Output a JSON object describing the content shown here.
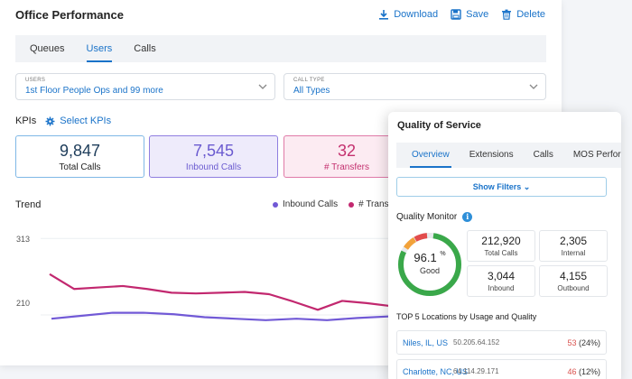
{
  "header": {
    "title": "Office Performance",
    "download_label": "Download",
    "save_label": "Save",
    "delete_label": "Delete"
  },
  "tabs": [
    {
      "label": "Queues",
      "active": false
    },
    {
      "label": "Users",
      "active": true
    },
    {
      "label": "Calls",
      "active": false
    }
  ],
  "filters": {
    "users": {
      "label": "USERS",
      "value": "1st Floor People Ops and 99 more"
    },
    "call_type": {
      "label": "CALL TYPE",
      "value": "All Types"
    }
  },
  "kpis": {
    "label": "KPIs",
    "select_label": "Select KPIs",
    "cards": [
      {
        "value": "9,847",
        "label": "Total Calls"
      },
      {
        "value": "7,545",
        "label": "Inbound Calls"
      },
      {
        "value": "32",
        "label": "# Transfers"
      }
    ]
  },
  "trend": {
    "title": "Trend",
    "legend": [
      "Inbound Calls",
      "# Transfers"
    ],
    "y_ticks": [
      "313",
      "210"
    ]
  },
  "chart_data": {
    "type": "line",
    "title": "Trend",
    "ylim": [
      170,
      340
    ],
    "y_ticks": [
      313,
      210
    ],
    "series": [
      {
        "name": "Inbound Calls",
        "color": "#7159d6",
        "values": [
          205,
          209,
          213,
          213,
          211,
          207,
          205,
          203,
          205,
          203,
          206,
          208
        ]
      },
      {
        "name": "# Transfers",
        "color": "#c2286f",
        "values": [
          265,
          245,
          247,
          249,
          245,
          240,
          239,
          240,
          241,
          238,
          228,
          217,
          229,
          226,
          222
        ]
      }
    ]
  },
  "qos": {
    "title": "Quality of Service",
    "tabs": [
      {
        "label": "Overview",
        "active": true
      },
      {
        "label": "Extensions",
        "active": false
      },
      {
        "label": "Calls",
        "active": false
      },
      {
        "label": "MOS Performa",
        "active": false
      }
    ],
    "show_filters_label": "Show Filters",
    "monitor_title": "Quality Monitor",
    "gauge": {
      "value": "96.1",
      "unit": "%",
      "label": "Good",
      "percent": 96.1
    },
    "stats": [
      {
        "value": "212,920",
        "label": "Total Calls"
      },
      {
        "value": "2,305",
        "label": "Internal"
      },
      {
        "value": "3,044",
        "label": "Inbound"
      },
      {
        "value": "4,155",
        "label": "Outbound"
      }
    ],
    "top5_title": "TOP 5 Locations by Usage and Quality",
    "locations": [
      {
        "city": "Niles, IL, US",
        "ip": "50.205.64.152",
        "count": "53",
        "pct": "(24%)"
      },
      {
        "city": "Charlotte, NC, US",
        "ip": "64.114.29.171",
        "count": "46",
        "pct": "(12%)"
      }
    ]
  }
}
